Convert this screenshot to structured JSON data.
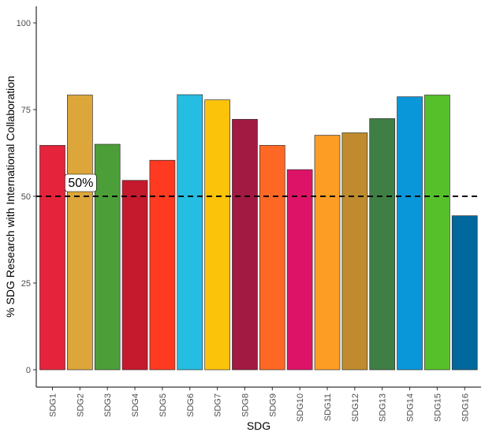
{
  "chart_data": {
    "type": "bar",
    "title": "",
    "xlabel": "SDG",
    "ylabel": "% SDG Research with International Collaboration",
    "ylim": [
      0,
      105
    ],
    "yticks": [
      0,
      25,
      50,
      75,
      100
    ],
    "categories": [
      "SDG1",
      "SDG2",
      "SDG3",
      "SDG4",
      "SDG5",
      "SDG6",
      "SDG7",
      "SDG8",
      "SDG9",
      "SDG10",
      "SDG11",
      "SDG12",
      "SDG13",
      "SDG14",
      "SDG15",
      "SDG16"
    ],
    "values": [
      64.7,
      79.2,
      65.0,
      54.6,
      60.4,
      79.3,
      77.8,
      72.2,
      64.7,
      57.7,
      67.6,
      68.3,
      72.4,
      78.7,
      79.2,
      44.4
    ],
    "colors": [
      "#E5243B",
      "#DDA63A",
      "#4C9F38",
      "#C5192D",
      "#FF3A21",
      "#26BDE2",
      "#FCC30B",
      "#A21942",
      "#FD6925",
      "#DD1367",
      "#FD9D24",
      "#BF8B2E",
      "#3F7E44",
      "#0A97D9",
      "#56C02B",
      "#00689D"
    ],
    "reference_line": {
      "value": 50,
      "style": "dashed",
      "color": "#000000"
    },
    "annotations": [
      {
        "text": "50%",
        "category": "SDG2"
      }
    ],
    "grid": false
  }
}
